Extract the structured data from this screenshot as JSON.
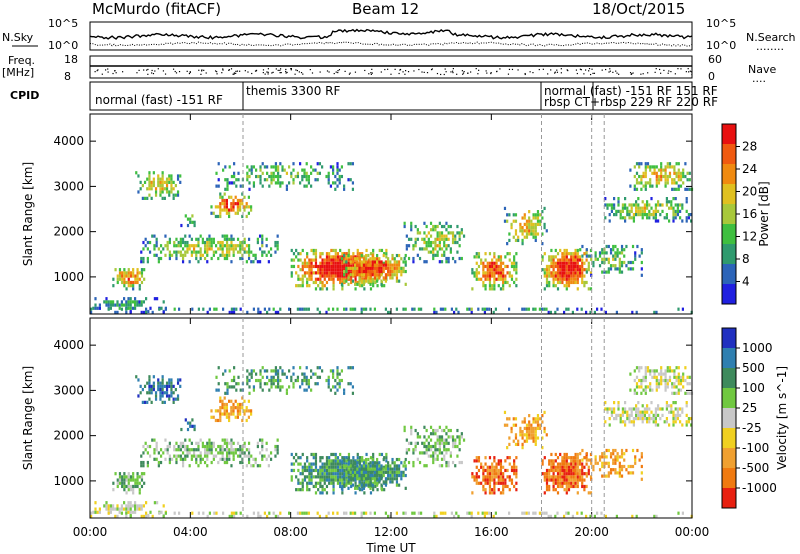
{
  "header": {
    "station": "McMurdo (fitACF)",
    "beam": "Beam 12",
    "date": "18/Oct/2015"
  },
  "side_labels": {
    "nsky": "N.Sky",
    "freq_top": "Freq.",
    "freq_unit": "[MHz]",
    "cpid": "CPID",
    "nsearch": "N.Search",
    "nsearch_dots": "........",
    "nave": "Nave",
    "nave_dots": "...."
  },
  "strip_ticks": {
    "noise_left": [
      "10^5",
      "10^0"
    ],
    "noise_right": [
      "10^5",
      "10^0"
    ],
    "freq_left": [
      "18",
      "8"
    ],
    "nave_right": [
      "60",
      "0"
    ]
  },
  "cpid_labels": [
    {
      "text": "normal (fast) -151 RF"
    },
    {
      "text": "themis 3300 RF"
    },
    {
      "text": "normal (fast) -151 RF 151 RF"
    },
    {
      "text": "rbsp CT+rbsp 229 RF 220 RF"
    }
  ],
  "colors": {
    "power": [
      "#2020e0",
      "#2c64b8",
      "#2f9a6e",
      "#3fbf40",
      "#a8c83a",
      "#e0c020",
      "#f08a10",
      "#f05a10",
      "#e81010"
    ],
    "velocity": [
      "#2030c0",
      "#2f7fb0",
      "#3e8a5c",
      "#70c840",
      "#c8c8c8",
      "#f0d020",
      "#f0a030",
      "#f07a10",
      "#e82010"
    ]
  },
  "chart_data": [
    {
      "type": "heatmap",
      "name": "Power",
      "xlabel": "",
      "ylabel": "Slant Range [km]",
      "x_ticks": [
        "00:00",
        "04:00",
        "08:00",
        "12:00",
        "16:00",
        "20:00",
        "00:00"
      ],
      "xlim": [
        0,
        24
      ],
      "ylim": [
        180,
        4600
      ],
      "y_ticks": [
        1000,
        2000,
        3000,
        4000
      ],
      "colorbar": {
        "label": "Power [dB]",
        "ticks": [
          4,
          8,
          12,
          16,
          20,
          24,
          28
        ],
        "range": [
          0,
          32
        ]
      }
    },
    {
      "type": "heatmap",
      "name": "Velocity",
      "xlabel": "Time UT",
      "ylabel": "Slant Range [km]",
      "x_ticks": [
        "00:00",
        "04:00",
        "08:00",
        "12:00",
        "16:00",
        "20:00",
        "00:00"
      ],
      "xlim": [
        0,
        24
      ],
      "ylim": [
        180,
        4600
      ],
      "y_ticks": [
        1000,
        2000,
        3000,
        4000
      ],
      "colorbar": {
        "label": "Velocity [m s^-1]",
        "ticks": [
          "1000",
          "500",
          "100",
          "25",
          "-25",
          "-100",
          "-500",
          "-1000"
        ]
      }
    }
  ]
}
